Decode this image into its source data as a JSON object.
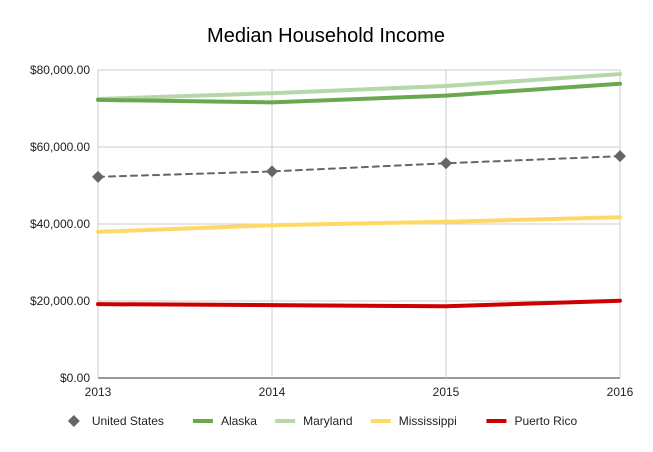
{
  "chart_data": {
    "type": "line",
    "title": "Median Household Income",
    "xlabel": "",
    "ylabel": "",
    "x": [
      "2013",
      "2014",
      "2015",
      "2016"
    ],
    "ylim": [
      0,
      80000
    ],
    "y_ticks": [
      "$0.00",
      "$20,000.00",
      "$40,000.00",
      "$60,000.00",
      "$80,000.00"
    ],
    "grid": true,
    "legend_position": "bottom",
    "series": [
      {
        "name": "United States",
        "values": [
          52250,
          53657,
          55775,
          57617
        ],
        "color": "#666666",
        "style": "dashed",
        "marker": "diamond"
      },
      {
        "name": "Alaska",
        "values": [
          72237,
          71583,
          73355,
          76440
        ],
        "color": "#6aa84f",
        "style": "solid"
      },
      {
        "name": "Maryland",
        "values": [
          72483,
          73971,
          75847,
          78945
        ],
        "color": "#b6d7a8",
        "style": "solid"
      },
      {
        "name": "Mississippi",
        "values": [
          37963,
          39680,
          40593,
          41754
        ],
        "color": "#ffd966",
        "style": "solid"
      },
      {
        "name": "Puerto Rico",
        "values": [
          19183,
          18928,
          18626,
          20078
        ],
        "color": "#cc0000",
        "style": "solid"
      }
    ]
  }
}
